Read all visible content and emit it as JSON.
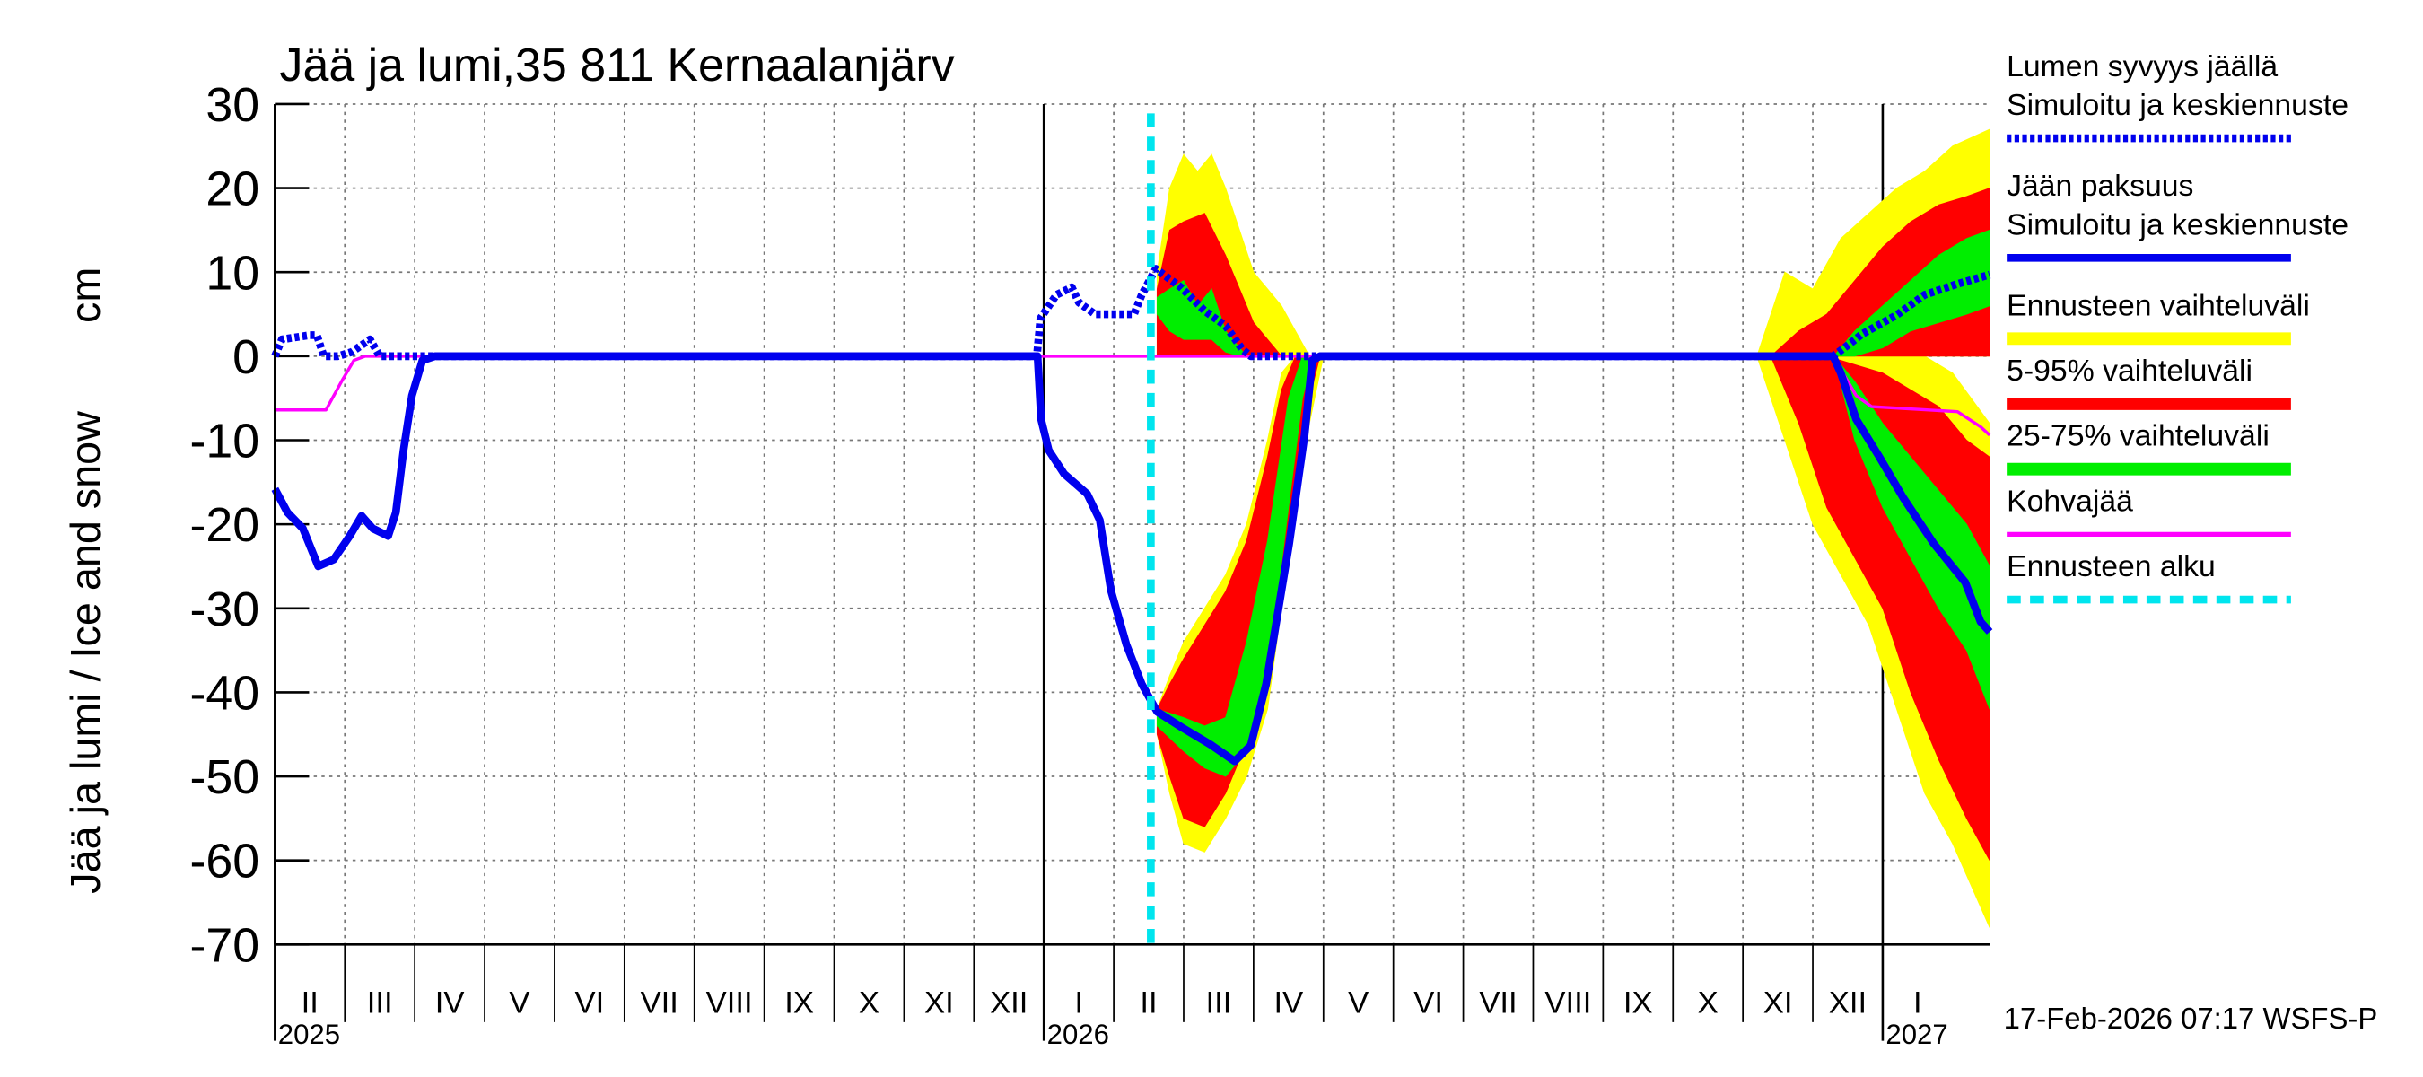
{
  "chart_data": {
    "type": "line",
    "title": "Jää ja lumi,35 811 Kernaalanjärv",
    "ylabel": "Jää ja lumi / Ice and snow",
    "yunit": "cm",
    "footer": "17-Feb-2026 07:17 WSFS-P",
    "grid": true,
    "ylim": [
      -70,
      30
    ],
    "yticks": [
      30,
      20,
      10,
      0,
      -10,
      -20,
      -30,
      -40,
      -50,
      -60,
      -70
    ],
    "xlim": [
      0,
      24.53
    ],
    "xticks": [
      {
        "value": 0,
        "label": "II"
      },
      {
        "value": 1,
        "label": "III"
      },
      {
        "value": 2,
        "label": "IV"
      },
      {
        "value": 3,
        "label": "V"
      },
      {
        "value": 4,
        "label": "VI"
      },
      {
        "value": 5,
        "label": "VII"
      },
      {
        "value": 6,
        "label": "VIII"
      },
      {
        "value": 7,
        "label": "IX"
      },
      {
        "value": 8,
        "label": "X"
      },
      {
        "value": 9,
        "label": "XI"
      },
      {
        "value": 10,
        "label": "XII"
      },
      {
        "value": 11,
        "label": "I"
      },
      {
        "value": 12,
        "label": "II"
      },
      {
        "value": 13,
        "label": "III"
      },
      {
        "value": 14,
        "label": "IV"
      },
      {
        "value": 15,
        "label": "V"
      },
      {
        "value": 16,
        "label": "VI"
      },
      {
        "value": 17,
        "label": "VII"
      },
      {
        "value": 18,
        "label": "VIII"
      },
      {
        "value": 19,
        "label": "IX"
      },
      {
        "value": 20,
        "label": "X"
      },
      {
        "value": 21,
        "label": "XI"
      },
      {
        "value": 22,
        "label": "XII"
      },
      {
        "value": 23,
        "label": "I"
      }
    ],
    "years": [
      {
        "value": 0,
        "label": "2025"
      },
      {
        "value": 11,
        "label": "2026"
      },
      {
        "value": 23,
        "label": "2027"
      }
    ],
    "series": [
      {
        "name": "Lumen syvyys jäällä",
        "method": "Simuloitu ja keskiennuste",
        "color": "#0000ee",
        "dashed": true,
        "x": [
          0,
          0.1,
          0.5,
          0.6,
          0.7,
          0.9,
          1.1,
          1.36,
          1.5,
          10.9,
          10.95,
          11.18,
          11.4,
          11.5,
          11.73,
          12.29,
          12.4,
          12.6,
          12.96,
          13.3,
          13.6,
          13.84,
          13.96,
          22.29,
          22.5,
          22.7,
          23.2,
          23.6,
          24.07,
          24.53
        ],
        "values": [
          0,
          2,
          2.5,
          2.5,
          0,
          0,
          0.5,
          2,
          0,
          0,
          4.5,
          7.3,
          8.2,
          6.4,
          5,
          5,
          7.3,
          10.4,
          8.2,
          5.4,
          3.6,
          0.8,
          0,
          0,
          1.3,
          2.6,
          4.9,
          7.3,
          8.6,
          9.7
        ]
      },
      {
        "name": "Jään paksuus",
        "method": "Simuloitu ja keskiennuste",
        "color": "#0000ee",
        "dashed": false,
        "x": [
          0,
          0.18,
          0.4,
          0.62,
          0.84,
          1.07,
          1.24,
          1.4,
          1.62,
          1.73,
          1.84,
          1.96,
          2.11,
          2.29,
          10.91,
          10.96,
          11.07,
          11.29,
          11.62,
          11.8,
          11.96,
          12.18,
          12.4,
          12.62,
          12.96,
          13.4,
          13.73,
          13.96,
          14.18,
          14.51,
          14.73,
          14.84,
          14.95,
          22.29,
          22.4,
          22.62,
          22.96,
          23.29,
          23.73,
          24.18,
          24.4,
          24.53
        ],
        "values": [
          -15.8,
          -18.6,
          -20.5,
          -25,
          -24.2,
          -21.4,
          -19,
          -20.5,
          -21.4,
          -18.6,
          -11.2,
          -4.7,
          -0.5,
          0,
          0,
          -7.5,
          -11.2,
          -14,
          -16.4,
          -19.5,
          -27.9,
          -34.3,
          -39,
          -42.3,
          -44.1,
          -46.3,
          -48.2,
          -46.3,
          -39,
          -22.3,
          -9.4,
          -0.5,
          0,
          0,
          -2,
          -7.5,
          -12.1,
          -16.8,
          -22.3,
          -26.9,
          -31.6,
          -32.8
        ]
      },
      {
        "name": "Kohvajää",
        "color": "#ff00ff",
        "dashed": false,
        "x": [
          0,
          0.73,
          0.96,
          1.13,
          1.29,
          22.29,
          22.62,
          22.84,
          24.07,
          24.4,
          24.53
        ],
        "values": [
          -6.4,
          -6.4,
          -2.9,
          -0.5,
          0,
          0,
          -4.7,
          -6,
          -6.6,
          -8.4,
          -9.4
        ]
      }
    ],
    "bands": [
      {
        "name": "Ennusteen vaihteluväli",
        "color": "#ffff00",
        "areas": [
          {
            "x": [
              12.62,
              12.8,
              13.0,
              13.2,
              13.4,
              13.6,
              13.8,
              14.0,
              14.2,
              14.4,
              14.6,
              14.8
            ],
            "high": [
              10,
              20,
              24,
              22,
              24,
              20,
              15,
              10,
              8,
              6,
              3,
              0
            ],
            "low": [
              0,
              0,
              0,
              0,
              0,
              0,
              0,
              0,
              0,
              0,
              0,
              0
            ]
          },
          {
            "x": [
              12.62,
              12.8,
              13.0,
              13.3,
              13.6,
              13.9,
              14.2,
              14.4,
              14.6,
              14.8,
              15.0
            ],
            "high": [
              -42,
              -38,
              -34,
              -30,
              -26,
              -20,
              -10,
              -2,
              0,
              0,
              0
            ],
            "low": [
              -45,
              -52,
              -58,
              -59,
              -55,
              -50,
              -42,
              -30,
              -18,
              -8,
              0
            ]
          },
          {
            "x": [
              21.2,
              21.6,
              22.0,
              22.4,
              22.8,
              23.2,
              23.6,
              24.0,
              24.53
            ],
            "high": [
              0,
              10,
              8,
              14,
              17,
              20,
              22,
              25,
              27
            ],
            "low": [
              0,
              0,
              0,
              0,
              0,
              0,
              0,
              0,
              0
            ]
          },
          {
            "x": [
              21.2,
              21.6,
              22.0,
              22.4,
              22.8,
              23.2,
              23.6,
              24.0,
              24.53
            ],
            "high": [
              0,
              0,
              0,
              0,
              0,
              0,
              0,
              -2,
              -8
            ],
            "low": [
              0,
              -10,
              -20,
              -26,
              -32,
              -42,
              -52,
              -58,
              -68
            ]
          }
        ]
      },
      {
        "name": "5-95% vaihteluväli",
        "color": "#ff0000",
        "areas": [
          {
            "x": [
              12.62,
              12.8,
              13.0,
              13.3,
              13.6,
              13.8,
              14.0,
              14.2,
              14.4
            ],
            "high": [
              8,
              15,
              16,
              17,
              12,
              8,
              4,
              2,
              0
            ],
            "low": [
              0,
              0,
              0,
              0,
              0,
              0,
              0,
              0,
              0
            ]
          },
          {
            "x": [
              12.62,
              12.8,
              13.0,
              13.3,
              13.6,
              13.9,
              14.2,
              14.4,
              14.6,
              14.8,
              14.95
            ],
            "high": [
              -42,
              -39,
              -36,
              -32,
              -28,
              -22,
              -12,
              -4,
              0,
              0,
              0
            ],
            "low": [
              -45,
              -50,
              -55,
              -56,
              -52,
              -46,
              -38,
              -26,
              -14,
              -5,
              0
            ]
          },
          {
            "x": [
              21.4,
              21.8,
              22.2,
              22.6,
              23.0,
              23.4,
              23.8,
              24.2,
              24.53
            ],
            "high": [
              0,
              3,
              5,
              9,
              13,
              16,
              18,
              19,
              20
            ],
            "low": [
              0,
              0,
              0,
              0,
              0,
              0,
              0,
              0,
              0
            ]
          },
          {
            "x": [
              21.4,
              21.8,
              22.2,
              22.6,
              23.0,
              23.4,
              23.8,
              24.2,
              24.53
            ],
            "high": [
              0,
              0,
              0,
              -1,
              -2,
              -4,
              -6,
              -10,
              -12
            ],
            "low": [
              0,
              -8,
              -18,
              -24,
              -30,
              -40,
              -48,
              -55,
              -60
            ]
          }
        ]
      },
      {
        "name": "25-75% vaihteluväli",
        "color": "#00ee00",
        "areas": [
          {
            "x": [
              12.62,
              12.8,
              13.0,
              13.2,
              13.4,
              13.6,
              13.8,
              13.9
            ],
            "high": [
              7,
              8,
              9,
              6,
              8,
              3,
              1,
              0
            ],
            "low": [
              5,
              3,
              2,
              2,
              2,
              0.5,
              0,
              0
            ]
          },
          {
            "x": [
              12.62,
              13.0,
              13.3,
              13.6,
              13.9,
              14.2,
              14.5,
              14.7,
              14.85
            ],
            "high": [
              -42,
              -43,
              -44,
              -43,
              -34,
              -22,
              -5,
              0,
              0
            ],
            "low": [
              -44,
              -47,
              -49,
              -50,
              -47,
              -38,
              -18,
              -5,
              0
            ]
          },
          {
            "x": [
              22.3,
              22.6,
              23.0,
              23.4,
              23.8,
              24.2,
              24.53
            ],
            "high": [
              0,
              3,
              6,
              9,
              12,
              14,
              15
            ],
            "low": [
              0,
              0,
              1,
              3,
              4,
              5,
              6
            ]
          },
          {
            "x": [
              22.3,
              22.6,
              23.0,
              23.4,
              23.8,
              24.2,
              24.53
            ],
            "high": [
              0,
              -3,
              -8,
              -12,
              -16,
              -20,
              -25
            ],
            "low": [
              0,
              -10,
              -18,
              -24,
              -30,
              -35,
              -42
            ]
          }
        ]
      }
    ],
    "forecast_start": {
      "name": "Ennusteen alku",
      "x": 12.53,
      "color": "#00e5ee"
    }
  }
}
